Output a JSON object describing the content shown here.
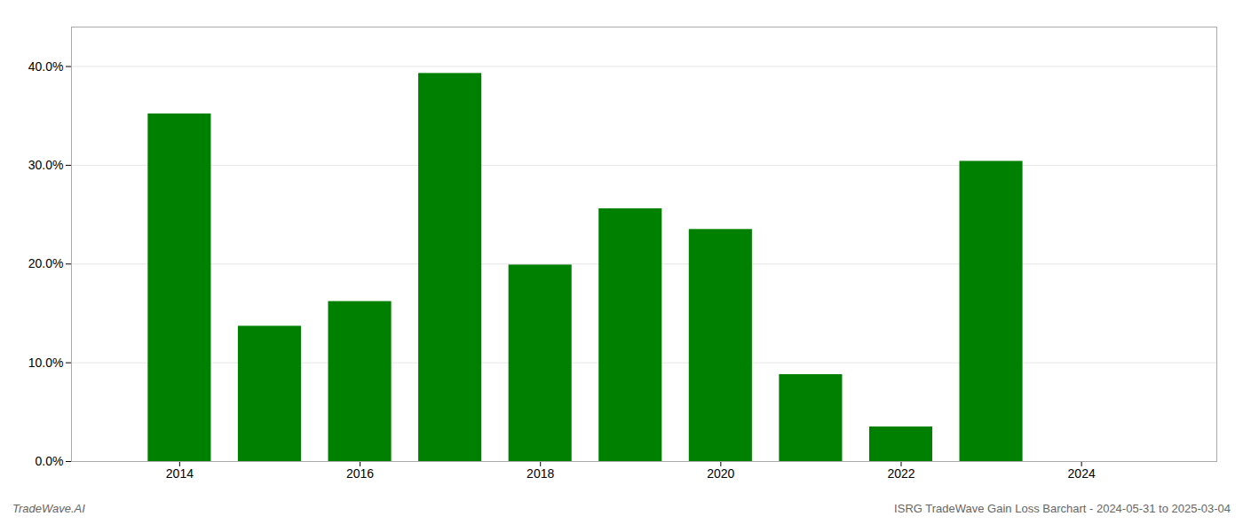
{
  "chart_data": {
    "type": "bar",
    "x": [
      2014,
      2015,
      2016,
      2017,
      2018,
      2019,
      2020,
      2021,
      2022,
      2023,
      2024
    ],
    "values": [
      0.352,
      0.137,
      0.162,
      0.393,
      0.199,
      0.256,
      0.235,
      0.088,
      0.035,
      0.304,
      0.0
    ],
    "color": "#008000",
    "xlim": [
      2012.8,
      2025.5
    ],
    "xticks": [
      2014,
      2016,
      2018,
      2020,
      2022,
      2024
    ],
    "ylim": [
      0,
      0.44
    ],
    "yticks": [
      {
        "value": 0.0,
        "label": "0.0%"
      },
      {
        "value": 0.1,
        "label": "10.0%"
      },
      {
        "value": 0.2,
        "label": "20.0%"
      },
      {
        "value": 0.3,
        "label": "30.0%"
      },
      {
        "value": 0.4,
        "label": "40.0%"
      }
    ],
    "grid": true,
    "annotations": [
      "TradeWave.AI",
      "ISRG TradeWave Gain Loss Barchart - 2024-05-31 to 2025-03-04"
    ]
  }
}
